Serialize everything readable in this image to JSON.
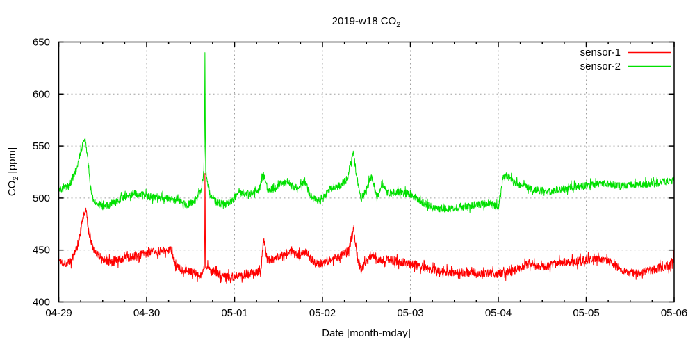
{
  "chart": {
    "background": "#ffffff",
    "text_color": "#000000",
    "grid_color": "#a0a0a0",
    "border_color": "#000000"
  },
  "chart_data": {
    "type": "line",
    "title": "2019-w18 CO₂",
    "title_main": "2019-w18 CO",
    "title_sub": "2",
    "xlabel": "Date [month-mday]",
    "ylabel": "CO₂ [ppm]",
    "ylabel_main": "CO",
    "ylabel_sub": "2",
    "ylabel_rest": "[ppm]",
    "x_unit": "days since 2019-04-29 00:00",
    "xlim_days": [
      0,
      7
    ],
    "ylim": [
      400,
      650
    ],
    "x_ticks": [
      {
        "day": 0,
        "label": "04-29"
      },
      {
        "day": 1,
        "label": "04-30"
      },
      {
        "day": 2,
        "label": "05-01"
      },
      {
        "day": 3,
        "label": "05-02"
      },
      {
        "day": 4,
        "label": "05-03"
      },
      {
        "day": 5,
        "label": "05-04"
      },
      {
        "day": 6,
        "label": "05-05"
      },
      {
        "day": 7,
        "label": "05-06"
      }
    ],
    "x_minor_tick_interval_days": 0.25,
    "y_ticks": [
      400,
      450,
      500,
      550,
      600,
      650
    ],
    "grid": true,
    "legend": {
      "position": "top-right",
      "entries": [
        "sensor-1",
        "sensor-2"
      ]
    },
    "series": [
      {
        "name": "sensor-1",
        "color": "#ff0000",
        "noise_ppm": 4,
        "trend_day_ppm": [
          [
            0,
            440
          ],
          [
            0.08,
            437
          ],
          [
            0.14,
            439
          ],
          [
            0.22,
            455
          ],
          [
            0.28,
            482
          ],
          [
            0.31,
            488
          ],
          [
            0.34,
            468
          ],
          [
            0.4,
            450
          ],
          [
            0.5,
            441
          ],
          [
            0.6,
            438
          ],
          [
            0.72,
            441
          ],
          [
            0.85,
            444
          ],
          [
            1,
            447
          ],
          [
            1.15,
            449
          ],
          [
            1.28,
            450
          ],
          [
            1.33,
            434
          ],
          [
            1.4,
            432
          ],
          [
            1.5,
            429
          ],
          [
            1.6,
            426
          ],
          [
            1.64,
            428
          ],
          [
            1.657,
            432
          ],
          [
            1.661,
            470
          ],
          [
            1.663,
            527
          ],
          [
            1.666,
            500
          ],
          [
            1.67,
            435
          ],
          [
            1.75,
            428
          ],
          [
            1.85,
            426
          ],
          [
            1.95,
            424
          ],
          [
            2.05,
            426
          ],
          [
            2.2,
            428
          ],
          [
            2.3,
            430
          ],
          [
            2.33,
            461
          ],
          [
            2.37,
            440
          ],
          [
            2.45,
            441
          ],
          [
            2.55,
            446
          ],
          [
            2.65,
            449
          ],
          [
            2.72,
            444
          ],
          [
            2.82,
            448
          ],
          [
            2.9,
            438
          ],
          [
            2.98,
            436
          ],
          [
            3.08,
            440
          ],
          [
            3.2,
            444
          ],
          [
            3.3,
            450
          ],
          [
            3.35,
            470
          ],
          [
            3.4,
            442
          ],
          [
            3.44,
            430
          ],
          [
            3.52,
            443
          ],
          [
            3.58,
            446
          ],
          [
            3.65,
            439
          ],
          [
            3.75,
            441
          ],
          [
            3.9,
            438
          ],
          [
            4.05,
            436
          ],
          [
            4.25,
            431
          ],
          [
            4.5,
            428
          ],
          [
            4.75,
            428
          ],
          [
            5,
            427
          ],
          [
            5.15,
            429
          ],
          [
            5.35,
            437
          ],
          [
            5.5,
            433
          ],
          [
            5.7,
            438
          ],
          [
            5.9,
            439
          ],
          [
            6.1,
            442
          ],
          [
            6.25,
            440
          ],
          [
            6.45,
            429
          ],
          [
            6.6,
            428
          ],
          [
            6.8,
            432
          ],
          [
            6.95,
            435
          ],
          [
            7,
            443
          ]
        ]
      },
      {
        "name": "sensor-2",
        "color": "#00e000",
        "noise_ppm": 3.5,
        "trend_day_ppm": [
          [
            0,
            508
          ],
          [
            0.06,
            509
          ],
          [
            0.12,
            512
          ],
          [
            0.2,
            528
          ],
          [
            0.26,
            548
          ],
          [
            0.3,
            556
          ],
          [
            0.33,
            540
          ],
          [
            0.36,
            510
          ],
          [
            0.4,
            497
          ],
          [
            0.5,
            492
          ],
          [
            0.6,
            494
          ],
          [
            0.72,
            500
          ],
          [
            0.85,
            504
          ],
          [
            0.95,
            503
          ],
          [
            1.05,
            501
          ],
          [
            1.2,
            500
          ],
          [
            1.35,
            497
          ],
          [
            1.45,
            493
          ],
          [
            1.55,
            497
          ],
          [
            1.62,
            508
          ],
          [
            1.65,
            523
          ],
          [
            1.658,
            560
          ],
          [
            1.663,
            640
          ],
          [
            1.668,
            560
          ],
          [
            1.672,
            525
          ],
          [
            1.72,
            503
          ],
          [
            1.8,
            495
          ],
          [
            1.9,
            494
          ],
          [
            1.98,
            498
          ],
          [
            2.05,
            506
          ],
          [
            2.18,
            504
          ],
          [
            2.28,
            508
          ],
          [
            2.33,
            524
          ],
          [
            2.38,
            507
          ],
          [
            2.5,
            512
          ],
          [
            2.6,
            516
          ],
          [
            2.68,
            509
          ],
          [
            2.8,
            515
          ],
          [
            2.88,
            500
          ],
          [
            2.98,
            496
          ],
          [
            3.08,
            509
          ],
          [
            3.2,
            512
          ],
          [
            3.28,
            518
          ],
          [
            3.35,
            544
          ],
          [
            3.4,
            515
          ],
          [
            3.44,
            498
          ],
          [
            3.5,
            509
          ],
          [
            3.56,
            522
          ],
          [
            3.62,
            499
          ],
          [
            3.68,
            514
          ],
          [
            3.74,
            505
          ],
          [
            3.85,
            506
          ],
          [
            4,
            504
          ],
          [
            4.15,
            495
          ],
          [
            4.3,
            490
          ],
          [
            4.5,
            490
          ],
          [
            4.7,
            493
          ],
          [
            4.9,
            495
          ],
          [
            5,
            491
          ],
          [
            5.05,
            518
          ],
          [
            5.09,
            522
          ],
          [
            5.2,
            514
          ],
          [
            5.4,
            508
          ],
          [
            5.6,
            506
          ],
          [
            5.8,
            510
          ],
          [
            6,
            512
          ],
          [
            6.2,
            514
          ],
          [
            6.4,
            511
          ],
          [
            6.6,
            513
          ],
          [
            6.8,
            514
          ],
          [
            7,
            518
          ]
        ]
      }
    ]
  }
}
